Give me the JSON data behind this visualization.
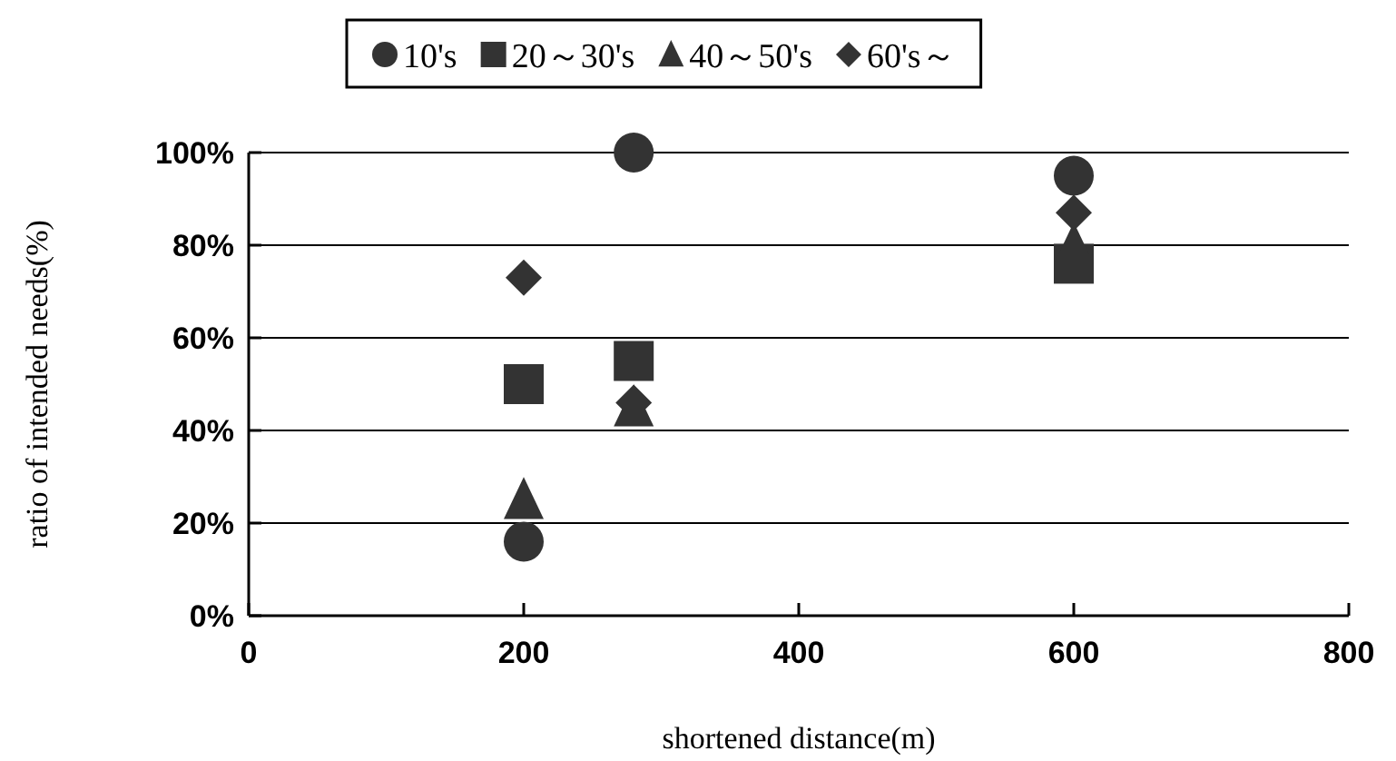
{
  "chart_data": {
    "type": "scatter",
    "xlabel": "shortened distance(m)",
    "ylabel": "ratio of intended needs(%)",
    "x": [
      200,
      280,
      600
    ],
    "series": [
      {
        "name": "10's",
        "color": "#333333",
        "marker": "circle",
        "values": [
          16,
          100,
          95
        ]
      },
      {
        "name": "20～30's",
        "color": "#333333",
        "marker": "square",
        "values": [
          50,
          55,
          76
        ]
      },
      {
        "name": "40～50's",
        "color": "#333333",
        "marker": "triangle",
        "values": [
          25,
          45,
          80
        ]
      },
      {
        "name": "60's～",
        "color": "#333333",
        "marker": "diamond",
        "values": [
          73,
          46,
          87
        ]
      }
    ],
    "xlim": [
      0,
      800
    ],
    "xticks": [
      0,
      200,
      400,
      600,
      800
    ],
    "ylim": [
      0,
      100
    ],
    "yticks": [
      {
        "value": 0,
        "label": "0%"
      },
      {
        "value": 20,
        "label": "20%"
      },
      {
        "value": 40,
        "label": "40%"
      },
      {
        "value": 60,
        "label": "60%"
      },
      {
        "value": 80,
        "label": "80%"
      },
      {
        "value": 100,
        "label": "100%"
      }
    ],
    "grid": "y",
    "legend": "top"
  }
}
